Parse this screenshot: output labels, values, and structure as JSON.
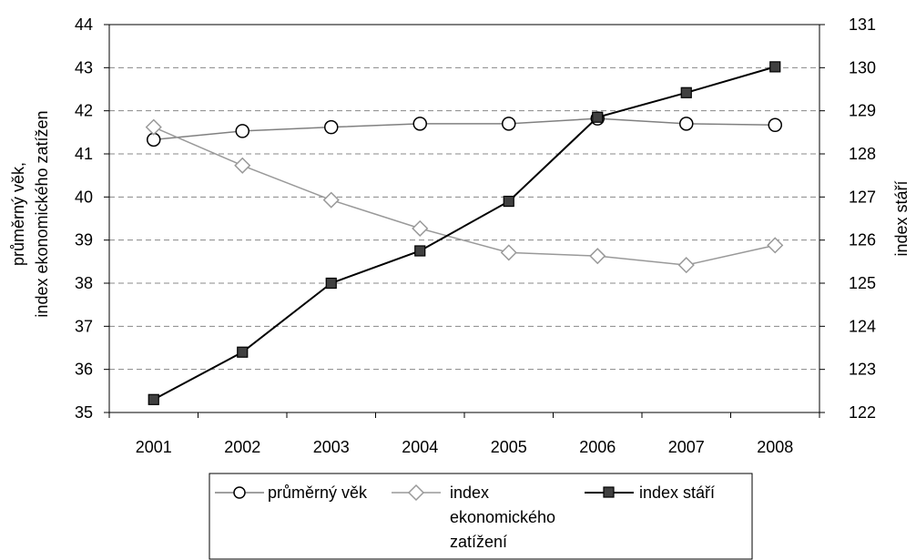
{
  "chart_data": {
    "type": "line",
    "categories": [
      "2001",
      "2002",
      "2003",
      "2004",
      "2005",
      "2006",
      "2007",
      "2008"
    ],
    "y_left": {
      "label_lines": [
        "průměrný věk,",
        "index ekonomického zatížen"
      ],
      "min": 35,
      "max": 44,
      "step": 1,
      "ticks": [
        "35",
        "36",
        "37",
        "38",
        "39",
        "40",
        "41",
        "42",
        "43",
        "44"
      ]
    },
    "y_right": {
      "label": "index stáří",
      "min": 122,
      "max": 131,
      "step": 1,
      "ticks": [
        "122",
        "123",
        "124",
        "125",
        "126",
        "127",
        "128",
        "129",
        "130",
        "131"
      ]
    },
    "grid": "dashed-horizontal",
    "legend_position": "bottom",
    "series": [
      {
        "name": "průměrný věk",
        "axis": "left",
        "marker": "circle-open",
        "color": "#808080",
        "values": [
          41.33,
          41.53,
          41.62,
          41.7,
          41.7,
          41.82,
          41.7,
          41.67
        ]
      },
      {
        "name": "index ekonomického zatížení",
        "name_lines": [
          "index",
          "ekonomického",
          "zatížení"
        ],
        "axis": "left",
        "marker": "diamond-open",
        "color": "#999999",
        "values": [
          41.62,
          40.73,
          39.93,
          39.27,
          38.71,
          38.63,
          38.42,
          38.88
        ]
      },
      {
        "name": "index stáří",
        "axis": "right",
        "marker": "square-filled",
        "color": "#000000",
        "values": [
          122.3,
          123.4,
          125.0,
          125.75,
          126.9,
          128.85,
          129.42,
          130.02
        ]
      }
    ]
  }
}
